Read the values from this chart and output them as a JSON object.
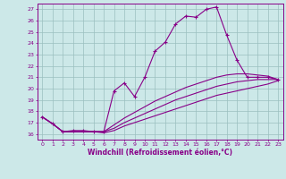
{
  "xlabel": "Windchill (Refroidissement éolien,°C)",
  "xlim": [
    -0.5,
    23.5
  ],
  "ylim": [
    15.5,
    27.5
  ],
  "xticks": [
    0,
    1,
    2,
    3,
    4,
    5,
    6,
    7,
    8,
    9,
    10,
    11,
    12,
    13,
    14,
    15,
    16,
    17,
    18,
    19,
    20,
    21,
    22,
    23
  ],
  "yticks": [
    16,
    17,
    18,
    19,
    20,
    21,
    22,
    23,
    24,
    25,
    26,
    27
  ],
  "bg_color": "#cce8e8",
  "grid_color": "#9bbfbf",
  "line_color": "#880088",
  "lines": [
    {
      "x": [
        0,
        1,
        2,
        3,
        4,
        5,
        6,
        7,
        8,
        9,
        10,
        11,
        12,
        13,
        14,
        15,
        16,
        17,
        18,
        19,
        20,
        21,
        22,
        23
      ],
      "y": [
        17.5,
        16.9,
        16.2,
        16.3,
        16.3,
        16.2,
        16.2,
        19.8,
        20.5,
        19.3,
        21.0,
        23.3,
        24.1,
        25.7,
        26.4,
        26.3,
        27.0,
        27.2,
        24.7,
        22.5,
        21.0,
        21.0,
        21.0,
        20.8
      ],
      "marker": true
    },
    {
      "x": [
        0,
        1,
        2,
        3,
        4,
        5,
        6,
        7,
        8,
        9,
        10,
        11,
        12,
        13,
        14,
        15,
        16,
        17,
        18,
        19,
        20,
        21,
        22,
        23
      ],
      "y": [
        17.5,
        16.9,
        16.2,
        16.2,
        16.2,
        16.2,
        16.2,
        16.8,
        17.4,
        17.9,
        18.4,
        18.9,
        19.3,
        19.7,
        20.1,
        20.4,
        20.7,
        21.0,
        21.2,
        21.3,
        21.3,
        21.2,
        21.1,
        20.8
      ],
      "marker": false
    },
    {
      "x": [
        0,
        1,
        2,
        3,
        4,
        5,
        6,
        7,
        8,
        9,
        10,
        11,
        12,
        13,
        14,
        15,
        16,
        17,
        18,
        19,
        20,
        21,
        22,
        23
      ],
      "y": [
        17.5,
        16.9,
        16.2,
        16.2,
        16.2,
        16.2,
        16.2,
        16.5,
        17.0,
        17.4,
        17.8,
        18.2,
        18.6,
        19.0,
        19.3,
        19.6,
        19.9,
        20.2,
        20.4,
        20.6,
        20.7,
        20.8,
        20.8,
        20.8
      ],
      "marker": false
    },
    {
      "x": [
        0,
        1,
        2,
        3,
        4,
        5,
        6,
        7,
        8,
        9,
        10,
        11,
        12,
        13,
        14,
        15,
        16,
        17,
        18,
        19,
        20,
        21,
        22,
        23
      ],
      "y": [
        17.5,
        16.9,
        16.2,
        16.2,
        16.2,
        16.2,
        16.1,
        16.3,
        16.7,
        17.0,
        17.3,
        17.6,
        17.9,
        18.2,
        18.5,
        18.8,
        19.1,
        19.4,
        19.6,
        19.8,
        20.0,
        20.2,
        20.4,
        20.7
      ],
      "marker": false
    }
  ]
}
